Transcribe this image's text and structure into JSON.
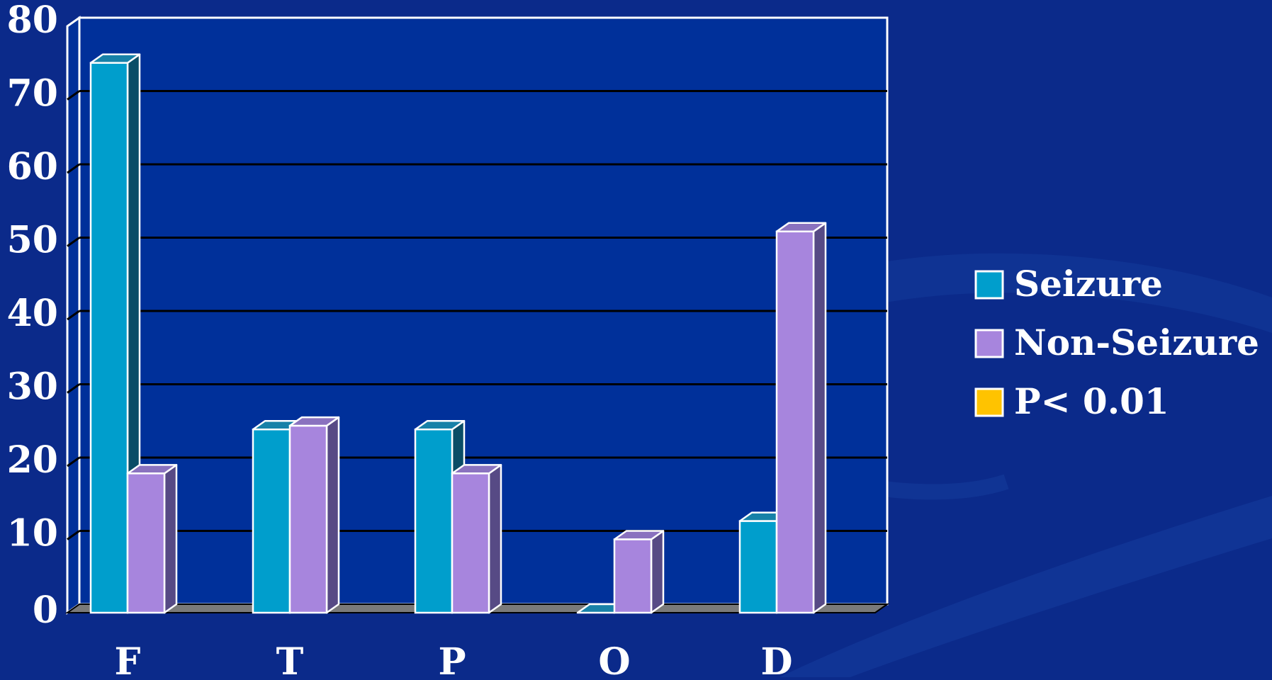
{
  "colors": {
    "background": "#0b2a8a",
    "plot_bg": "#00309a",
    "seizure": "#009ecc",
    "seizure_side": "#0a4d66",
    "seizure_top": "#1781a8",
    "nonseizure": "#a785dd",
    "nonseizure_side": "#574a85",
    "nonseizure_top": "#8a72bf",
    "pvalue": "#ffc300",
    "gridline": "#000000",
    "floor": "#7a7a7a",
    "outline": "#ffffff"
  },
  "chart_data": {
    "type": "bar",
    "categories": [
      "F",
      "T",
      "P",
      "O",
      "D"
    ],
    "series": [
      {
        "name": "Seizure",
        "values": [
          75,
          25,
          25,
          0,
          12.5
        ]
      },
      {
        "name": "Non-Seizure",
        "values": [
          19,
          25.5,
          19,
          10,
          52
        ]
      }
    ],
    "legend": [
      "Seizure",
      "Non-Seizure",
      "P< 0.01"
    ],
    "legend_position": "right",
    "ylim": [
      0,
      80
    ],
    "yticks": [
      "0",
      "10",
      "20",
      "30",
      "40",
      "50",
      "60",
      "70",
      "80"
    ],
    "grid": true,
    "style": "3d-bars"
  }
}
